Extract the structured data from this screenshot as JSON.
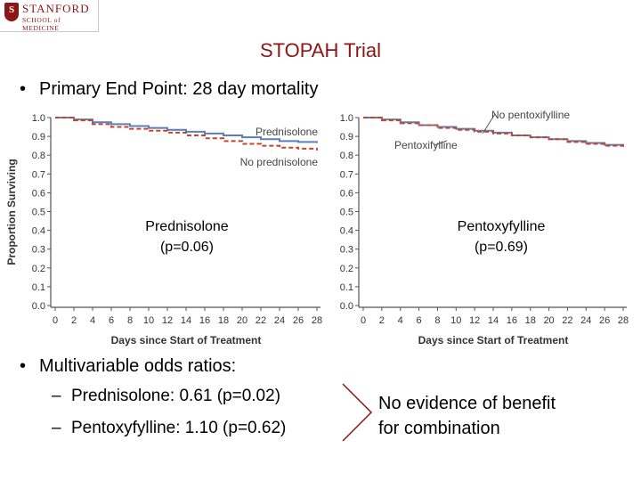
{
  "logo": {
    "line1": "STANFORD",
    "line2": "SCHOOL of MEDICINE",
    "shield_letter": "S",
    "brand_color": "#8c1515"
  },
  "slide": {
    "title": "STOPAH Trial",
    "bullet_primary": "Primary End Point: 28 day mortality",
    "bullet_multivariable": "Multivariable odds ratios:",
    "sub_prednisolone": "Prednisolone: 0.61 (p=0.02)",
    "sub_pentoxyfylline": "Pentoxyfylline: 1.10 (p=0.62)",
    "bullet_symbol": "•",
    "dash_symbol": "–",
    "note_line1": "No evidence of benefit",
    "note_line2": "for combination"
  },
  "chart_data": [
    {
      "type": "line",
      "ylabel": "Proportion Surviving",
      "xlabel": "Days since Start of Treatment",
      "x": [
        0,
        2,
        4,
        6,
        8,
        10,
        12,
        14,
        16,
        18,
        20,
        22,
        24,
        26,
        28
      ],
      "xticks": [
        "0",
        "2",
        "4",
        "6",
        "8",
        "10",
        "12",
        "14",
        "16",
        "18",
        "20",
        "22",
        "24",
        "26",
        "28"
      ],
      "yticks": [
        "0.0",
        "0.1",
        "0.2",
        "0.3",
        "0.4",
        "0.5",
        "0.6",
        "0.7",
        "0.8",
        "0.9",
        "1.0"
      ],
      "ylim": [
        0,
        1
      ],
      "xlim": [
        0,
        28
      ],
      "series": [
        {
          "name": "Prednisolone",
          "color": "#5b7fba",
          "dashed": false,
          "values": [
            1.0,
            0.99,
            0.975,
            0.965,
            0.955,
            0.945,
            0.935,
            0.925,
            0.915,
            0.905,
            0.895,
            0.885,
            0.875,
            0.87,
            0.865
          ]
        },
        {
          "name": "No prednisolone",
          "color": "#c8432a",
          "dashed": true,
          "values": [
            1.0,
            0.985,
            0.965,
            0.95,
            0.94,
            0.93,
            0.92,
            0.905,
            0.89,
            0.875,
            0.86,
            0.85,
            0.84,
            0.835,
            0.825
          ]
        }
      ],
      "annotation_line1": "Prednisolone",
      "annotation_line2": "(p=0.06)"
    },
    {
      "type": "line",
      "ylabel": "",
      "xlabel": "Days since Start of Treatment",
      "x": [
        0,
        2,
        4,
        6,
        8,
        10,
        12,
        14,
        16,
        18,
        20,
        22,
        24,
        26,
        28
      ],
      "xticks": [
        "0",
        "2",
        "4",
        "6",
        "8",
        "10",
        "12",
        "14",
        "16",
        "18",
        "20",
        "22",
        "24",
        "26",
        "28"
      ],
      "yticks": [
        "0.0",
        "0.1",
        "0.2",
        "0.3",
        "0.4",
        "0.5",
        "0.6",
        "0.7",
        "0.8",
        "0.9",
        "1.0"
      ],
      "ylim": [
        0,
        1
      ],
      "xlim": [
        0,
        28
      ],
      "series": [
        {
          "name": "No pentoxifylline",
          "color": "#5b7fba",
          "dashed": false,
          "values": [
            1.0,
            0.99,
            0.975,
            0.96,
            0.95,
            0.94,
            0.93,
            0.92,
            0.905,
            0.895,
            0.885,
            0.875,
            0.865,
            0.855,
            0.845
          ]
        },
        {
          "name": "Pentoxifylline",
          "color": "#c8432a",
          "dashed": true,
          "values": [
            1.0,
            0.985,
            0.97,
            0.96,
            0.945,
            0.935,
            0.925,
            0.915,
            0.905,
            0.895,
            0.885,
            0.87,
            0.86,
            0.85,
            0.845
          ]
        }
      ],
      "annotation_line1": "Pentoxyfylline",
      "annotation_line2": "(p=0.69)"
    }
  ]
}
